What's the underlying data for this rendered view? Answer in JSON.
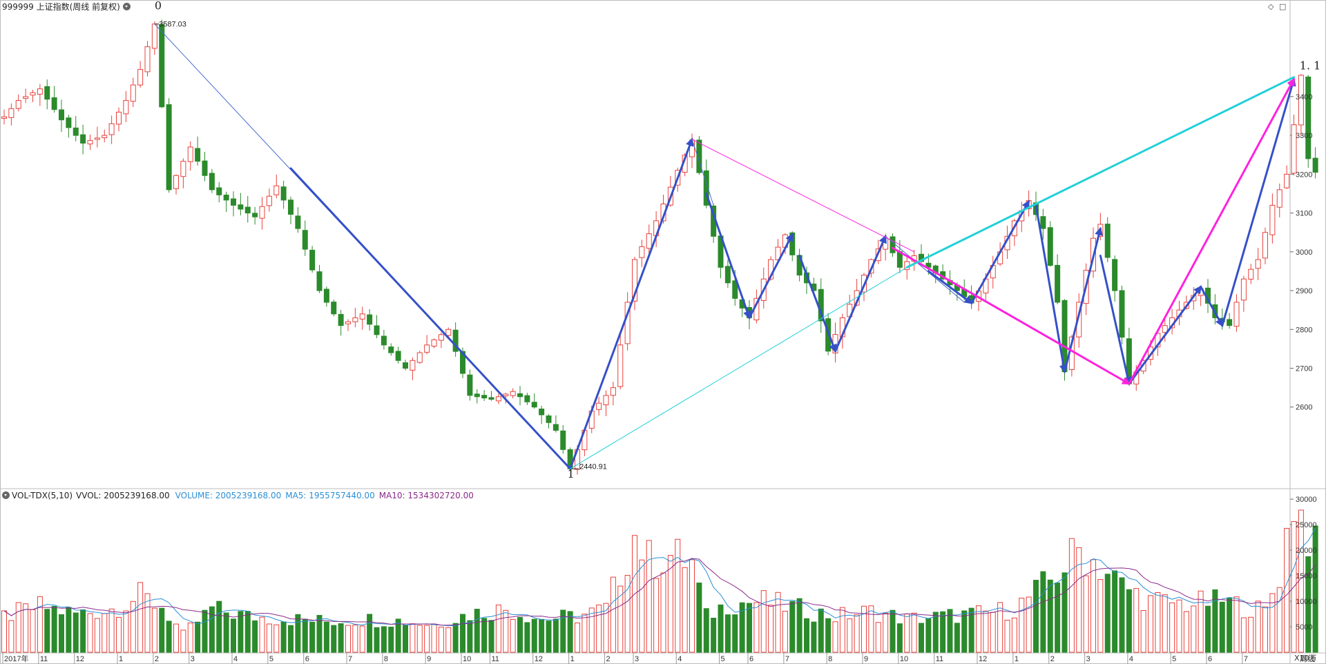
{
  "main_title": "999999 上证指数(周线 前复权)",
  "vol_header": {
    "name": "VOL-TDX(5,10)",
    "vvol": "VVOL: 2005239168.00",
    "volume": "VOLUME: 2005239168.00",
    "ma5": "MA5: 1955757440.00",
    "ma10": "MA10: 1534302720.00"
  },
  "toolbar": {
    "diamond_icon": "◇",
    "window_icon": "□"
  },
  "unit_label": "X10万",
  "period_label": "周线",
  "year_label": "2017年",
  "colors": {
    "up": "#e8403a",
    "down": "#2b8a2b",
    "trend": "#3550c8",
    "thin": "#4a6ad0",
    "magenta": "#ff22dd",
    "cyan": "#22d0d8",
    "ma5": "#2a8fd6",
    "ma10": "#8a2a8a",
    "grid": "#d6d6d6",
    "axis": "#666666"
  },
  "chart_data": {
    "type": "candlestick",
    "price_axis": {
      "ticks": [
        2600,
        2700,
        2800,
        2900,
        3000,
        3100,
        3200,
        3300,
        3400
      ],
      "range": [
        2395,
        3640
      ]
    },
    "volume_axis": {
      "ticks": [
        5000,
        10000,
        15000,
        20000,
        25000,
        30000
      ],
      "unit": "X10万",
      "range": [
        0,
        31500
      ]
    },
    "month_labels": [
      {
        "bar": 0,
        "text": "2017年"
      },
      {
        "bar": 5,
        "text": "11"
      },
      {
        "bar": 10,
        "text": "12"
      },
      {
        "bar": 16,
        "text": "1"
      },
      {
        "bar": 21,
        "text": "2"
      },
      {
        "bar": 26,
        "text": "3"
      },
      {
        "bar": 32,
        "text": "4"
      },
      {
        "bar": 37,
        "text": "5"
      },
      {
        "bar": 42,
        "text": "6"
      },
      {
        "bar": 48,
        "text": "7"
      },
      {
        "bar": 53,
        "text": "8"
      },
      {
        "bar": 59,
        "text": "9"
      },
      {
        "bar": 64,
        "text": "10"
      },
      {
        "bar": 68,
        "text": "11"
      },
      {
        "bar": 74,
        "text": "12"
      },
      {
        "bar": 79,
        "text": "1"
      },
      {
        "bar": 84,
        "text": "2"
      },
      {
        "bar": 88,
        "text": "3"
      },
      {
        "bar": 94,
        "text": "4"
      },
      {
        "bar": 100,
        "text": "5"
      },
      {
        "bar": 104,
        "text": "6"
      },
      {
        "bar": 109,
        "text": "7"
      },
      {
        "bar": 115,
        "text": "8"
      },
      {
        "bar": 120,
        "text": "9"
      },
      {
        "bar": 125,
        "text": "10"
      },
      {
        "bar": 130,
        "text": "11"
      },
      {
        "bar": 136,
        "text": "12"
      },
      {
        "bar": 141,
        "text": "1"
      },
      {
        "bar": 146,
        "text": "2"
      },
      {
        "bar": 151,
        "text": "3"
      },
      {
        "bar": 157,
        "text": "4"
      },
      {
        "bar": 163,
        "text": "5"
      },
      {
        "bar": 168,
        "text": "6"
      },
      {
        "bar": 173,
        "text": "7"
      }
    ],
    "waypoints": [
      {
        "bar": 0,
        "v": 3348
      },
      {
        "bar": 2,
        "v": 3390
      },
      {
        "bar": 5,
        "v": 3420
      },
      {
        "bar": 8,
        "v": 3340
      },
      {
        "bar": 11,
        "v": 3280
      },
      {
        "bar": 14,
        "v": 3300
      },
      {
        "bar": 17,
        "v": 3390
      },
      {
        "bar": 19,
        "v": 3470
      },
      {
        "bar": 21,
        "v": 3587
      },
      {
        "bar": 23,
        "v": 3160
      },
      {
        "bar": 26,
        "v": 3270
      },
      {
        "bar": 29,
        "v": 3160
      },
      {
        "bar": 32,
        "v": 3120
      },
      {
        "bar": 35,
        "v": 3090
      },
      {
        "bar": 38,
        "v": 3170
      },
      {
        "bar": 41,
        "v": 3060
      },
      {
        "bar": 44,
        "v": 2900
      },
      {
        "bar": 47,
        "v": 2810
      },
      {
        "bar": 50,
        "v": 2840
      },
      {
        "bar": 53,
        "v": 2760
      },
      {
        "bar": 56,
        "v": 2700
      },
      {
        "bar": 59,
        "v": 2760
      },
      {
        "bar": 62,
        "v": 2800
      },
      {
        "bar": 65,
        "v": 2630
      },
      {
        "bar": 68,
        "v": 2620
      },
      {
        "bar": 71,
        "v": 2640
      },
      {
        "bar": 74,
        "v": 2600
      },
      {
        "bar": 77,
        "v": 2540
      },
      {
        "bar": 79,
        "v": 2441
      },
      {
        "bar": 82,
        "v": 2590
      },
      {
        "bar": 85,
        "v": 2650
      },
      {
        "bar": 88,
        "v": 2980
      },
      {
        "bar": 91,
        "v": 3080
      },
      {
        "bar": 94,
        "v": 3210
      },
      {
        "bar": 96,
        "v": 3288
      },
      {
        "bar": 98,
        "v": 3120
      },
      {
        "bar": 100,
        "v": 2960
      },
      {
        "bar": 102,
        "v": 2880
      },
      {
        "bar": 104,
        "v": 2830
      },
      {
        "bar": 107,
        "v": 2980
      },
      {
        "bar": 109,
        "v": 3044
      },
      {
        "bar": 111,
        "v": 2940
      },
      {
        "bar": 113,
        "v": 2900
      },
      {
        "bar": 115,
        "v": 2744
      },
      {
        "bar": 117,
        "v": 2830
      },
      {
        "bar": 119,
        "v": 2900
      },
      {
        "bar": 121,
        "v": 2980
      },
      {
        "bar": 123,
        "v": 3035
      },
      {
        "bar": 125,
        "v": 2960
      },
      {
        "bar": 127,
        "v": 2990
      },
      {
        "bar": 129,
        "v": 2960
      },
      {
        "bar": 131,
        "v": 2930
      },
      {
        "bar": 133,
        "v": 2900
      },
      {
        "bar": 135,
        "v": 2868
      },
      {
        "bar": 137,
        "v": 2930
      },
      {
        "bar": 139,
        "v": 3000
      },
      {
        "bar": 141,
        "v": 3080
      },
      {
        "bar": 143,
        "v": 3132
      },
      {
        "bar": 145,
        "v": 3060
      },
      {
        "bar": 147,
        "v": 2870
      },
      {
        "bar": 148,
        "v": 2691
      },
      {
        "bar": 150,
        "v": 2870
      },
      {
        "bar": 152,
        "v": 3035
      },
      {
        "bar": 153,
        "v": 3071
      },
      {
        "bar": 155,
        "v": 2900
      },
      {
        "bar": 157,
        "v": 2660
      },
      {
        "bar": 159,
        "v": 2720
      },
      {
        "bar": 161,
        "v": 2790
      },
      {
        "bar": 163,
        "v": 2830
      },
      {
        "bar": 165,
        "v": 2870
      },
      {
        "bar": 167,
        "v": 2905
      },
      {
        "bar": 169,
        "v": 2830
      },
      {
        "bar": 171,
        "v": 2810
      },
      {
        "bar": 173,
        "v": 2930
      },
      {
        "bar": 175,
        "v": 2980
      },
      {
        "bar": 177,
        "v": 3120
      },
      {
        "bar": 179,
        "v": 3200
      },
      {
        "bar": 181,
        "v": 3455
      },
      {
        "bar": 182,
        "v": 3240
      },
      {
        "bar": 183,
        "v": 3205
      }
    ],
    "volume_waypoints": [
      {
        "bar": 0,
        "v": 7000
      },
      {
        "bar": 5,
        "v": 9000
      },
      {
        "bar": 10,
        "v": 7500
      },
      {
        "bar": 15,
        "v": 8500
      },
      {
        "bar": 19,
        "v": 11000
      },
      {
        "bar": 22,
        "v": 9000
      },
      {
        "bar": 25,
        "v": 3500
      },
      {
        "bar": 29,
        "v": 8500
      },
      {
        "bar": 34,
        "v": 7000
      },
      {
        "bar": 40,
        "v": 6500
      },
      {
        "bar": 45,
        "v": 6000
      },
      {
        "bar": 50,
        "v": 6500
      },
      {
        "bar": 55,
        "v": 6200
      },
      {
        "bar": 60,
        "v": 5500
      },
      {
        "bar": 65,
        "v": 7500
      },
      {
        "bar": 70,
        "v": 8500
      },
      {
        "bar": 75,
        "v": 6500
      },
      {
        "bar": 80,
        "v": 7000
      },
      {
        "bar": 84,
        "v": 8500
      },
      {
        "bar": 88,
        "v": 23000
      },
      {
        "bar": 90,
        "v": 18000
      },
      {
        "bar": 93,
        "v": 19000
      },
      {
        "bar": 96,
        "v": 17500
      },
      {
        "bar": 98,
        "v": 7000
      },
      {
        "bar": 101,
        "v": 9500
      },
      {
        "bar": 106,
        "v": 10000
      },
      {
        "bar": 111,
        "v": 8500
      },
      {
        "bar": 116,
        "v": 7000
      },
      {
        "bar": 121,
        "v": 8000
      },
      {
        "bar": 126,
        "v": 6500
      },
      {
        "bar": 131,
        "v": 7000
      },
      {
        "bar": 136,
        "v": 7500
      },
      {
        "bar": 141,
        "v": 8500
      },
      {
        "bar": 146,
        "v": 14000
      },
      {
        "bar": 150,
        "v": 20000
      },
      {
        "bar": 153,
        "v": 17000
      },
      {
        "bar": 156,
        "v": 13000
      },
      {
        "bar": 160,
        "v": 10000
      },
      {
        "bar": 165,
        "v": 9500
      },
      {
        "bar": 170,
        "v": 10000
      },
      {
        "bar": 176,
        "v": 8000
      },
      {
        "bar": 178,
        "v": 15500
      },
      {
        "bar": 180,
        "v": 30500
      },
      {
        "bar": 182,
        "v": 23500
      },
      {
        "bar": 183,
        "v": 20000
      }
    ],
    "lines": [
      {
        "id": "thin-down",
        "color": "#4a6ad0",
        "width": 1,
        "pts": [
          [
            21,
            3587
          ],
          [
            79,
            2441
          ]
        ]
      },
      {
        "id": "thick-down",
        "color": "#3550c8",
        "width": 3,
        "pts": [
          [
            40,
            3215
          ],
          [
            79,
            2441
          ]
        ]
      },
      {
        "id": "up-1",
        "color": "#3550c8",
        "width": 3,
        "pts": [
          [
            79,
            2441
          ],
          [
            96,
            3290
          ]
        ],
        "arrow": true
      },
      {
        "id": "thin-peak",
        "color": "#4a6ad0",
        "width": 1,
        "pts": [
          [
            96,
            3290
          ],
          [
            99,
            3120
          ]
        ]
      },
      {
        "id": "down-1",
        "color": "#3550c8",
        "width": 3,
        "pts": [
          [
            98,
            3150
          ],
          [
            104,
            2830
          ]
        ],
        "arrow": true
      },
      {
        "id": "up-2",
        "color": "#3550c8",
        "width": 3,
        "pts": [
          [
            104,
            2830
          ],
          [
            110,
            3045
          ]
        ],
        "arrow": true
      },
      {
        "id": "down-2",
        "color": "#3550c8",
        "width": 3,
        "pts": [
          [
            111,
            2990
          ],
          [
            116,
            2744
          ]
        ],
        "arrow": true
      },
      {
        "id": "up-3",
        "color": "#3550c8",
        "width": 3,
        "pts": [
          [
            116,
            2744
          ],
          [
            123,
            3040
          ]
        ],
        "arrow": true
      },
      {
        "id": "thin-mid",
        "color": "#4a6ad0",
        "width": 1,
        "pts": [
          [
            123,
            3040
          ],
          [
            134,
            2870
          ]
        ]
      },
      {
        "id": "down-3",
        "color": "#3550c8",
        "width": 3,
        "pts": [
          [
            129,
            2950
          ],
          [
            135,
            2868
          ]
        ],
        "arrow": true
      },
      {
        "id": "up-4",
        "color": "#3550c8",
        "width": 3,
        "pts": [
          [
            135,
            2868
          ],
          [
            143,
            3130
          ]
        ],
        "arrow": true
      },
      {
        "id": "down-4",
        "color": "#3550c8",
        "width": 3,
        "pts": [
          [
            144,
            3120
          ],
          [
            148,
            2691
          ]
        ],
        "arrow": true
      },
      {
        "id": "up-5",
        "color": "#3550c8",
        "width": 3,
        "pts": [
          [
            148,
            2691
          ],
          [
            153,
            3060
          ]
        ],
        "arrow": true
      },
      {
        "id": "down-5",
        "color": "#3550c8",
        "width": 3,
        "pts": [
          [
            153,
            2990
          ],
          [
            157,
            2660
          ]
        ],
        "arrow": true
      },
      {
        "id": "up-6",
        "color": "#3550c8",
        "width": 3,
        "pts": [
          [
            157,
            2660
          ],
          [
            167,
            2910
          ]
        ],
        "arrow": true
      },
      {
        "id": "down-6",
        "color": "#3550c8",
        "width": 3,
        "pts": [
          [
            167,
            2910
          ],
          [
            170,
            2810
          ]
        ],
        "arrow": true
      },
      {
        "id": "up-7",
        "color": "#3550c8",
        "width": 3,
        "pts": [
          [
            170,
            2810
          ],
          [
            180,
            3445
          ]
        ],
        "arrow": true
      },
      {
        "id": "magenta-thin",
        "color": "#ff22dd",
        "width": 1,
        "pts": [
          [
            96,
            3290
          ],
          [
            127,
            3000
          ]
        ]
      },
      {
        "id": "magenta-thick",
        "color": "#ff22dd",
        "width": 3,
        "pts": [
          [
            124,
            3010
          ],
          [
            157,
            2660
          ]
        ],
        "arrow": true
      },
      {
        "id": "magenta-up",
        "color": "#ff22dd",
        "width": 3,
        "pts": [
          [
            157,
            2660
          ],
          [
            180,
            3445
          ]
        ],
        "arrow": true
      },
      {
        "id": "cyan-thin",
        "color": "#22d0d8",
        "width": 1,
        "pts": [
          [
            79,
            2441
          ],
          [
            126,
            2960
          ]
        ]
      },
      {
        "id": "cyan-thick",
        "color": "#22d0d8",
        "width": 3,
        "pts": [
          [
            126,
            2960
          ],
          [
            180,
            3450
          ]
        ]
      }
    ],
    "annotations": [
      {
        "name": "label-zero",
        "text": "0",
        "bar": 21,
        "v": 3625,
        "size": 16,
        "font": "serif"
      },
      {
        "name": "high-value-label",
        "text": "3587.03",
        "bar": 21.6,
        "v": 3580,
        "size": 11
      },
      {
        "name": "label-one",
        "text": "1",
        "bar": 78.6,
        "v": 2418,
        "size": 16,
        "font": "serif"
      },
      {
        "name": "low-value-label",
        "text": "2440.91",
        "bar": 80.3,
        "v": 2440,
        "size": 11
      },
      {
        "name": "label-one-point-one",
        "text": "1. 1",
        "bar": 180.8,
        "v": 3470,
        "size": 16,
        "font": "serif"
      }
    ]
  }
}
